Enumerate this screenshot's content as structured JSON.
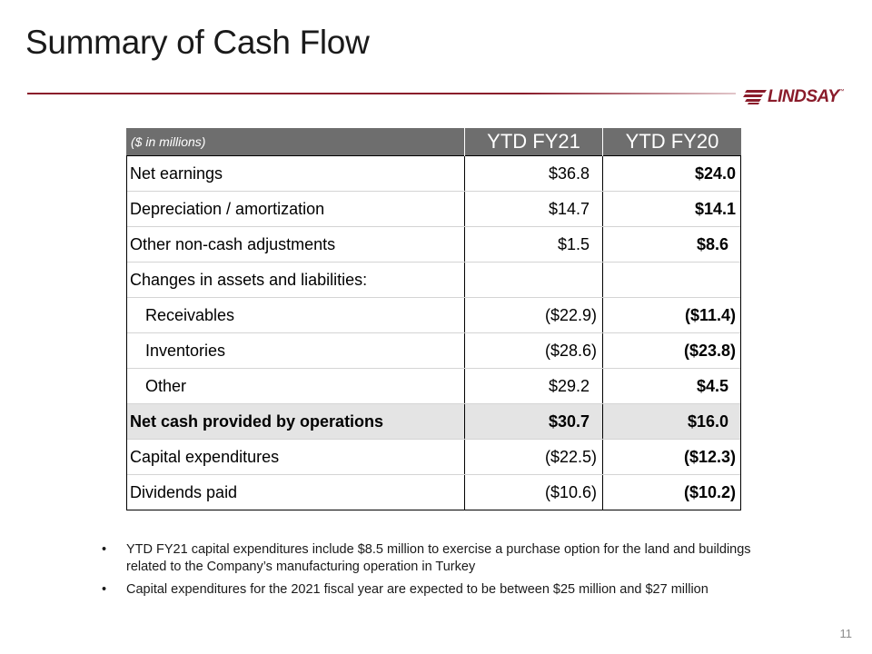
{
  "slide": {
    "title": "Summary of Cash Flow",
    "page_number": "11"
  },
  "logo": {
    "text": "LINDSAY",
    "tm": "™",
    "color": "#8a1c2b"
  },
  "table": {
    "unit_label": "($ in millions)",
    "columns": [
      "YTD FY21",
      "YTD FY20"
    ],
    "header_bg": "#6e6e6e",
    "highlight_bg": "#e4e4e4",
    "rows": [
      {
        "label": "Net earnings",
        "fy21": "$36.8",
        "fy20": "$24.0"
      },
      {
        "label": "Depreciation / amortization",
        "fy21": "$14.7",
        "fy20": "$14.1"
      },
      {
        "label": "Other non-cash adjustments",
        "fy21": "$1.5",
        "fy20": "$8.6"
      },
      {
        "label": "Changes in assets and liabilities:",
        "fy21": "",
        "fy20": ""
      },
      {
        "label": "Receivables",
        "fy21": "($22.9)",
        "fy20": "($11.4)"
      },
      {
        "label": "Inventories",
        "fy21": "($28.6)",
        "fy20": "($23.8)"
      },
      {
        "label": "Other",
        "fy21": "$29.2",
        "fy20": "$4.5"
      },
      {
        "label": "Net cash provided by operations",
        "fy21": "$30.7",
        "fy20": "$16.0"
      },
      {
        "label": "Capital expenditures",
        "fy21": "($22.5)",
        "fy20": "($12.3)"
      },
      {
        "label": "Dividends paid",
        "fy21": "($10.6)",
        "fy20": "($10.2)"
      }
    ]
  },
  "bullets": [
    "YTD FY21 capital expenditures include $8.5 million to exercise a purchase option for the land and buildings related to the Company’s manufacturing operation in Turkey",
    "Capital expenditures for the 2021 fiscal year are expected to be between $25 million and $27 million"
  ]
}
